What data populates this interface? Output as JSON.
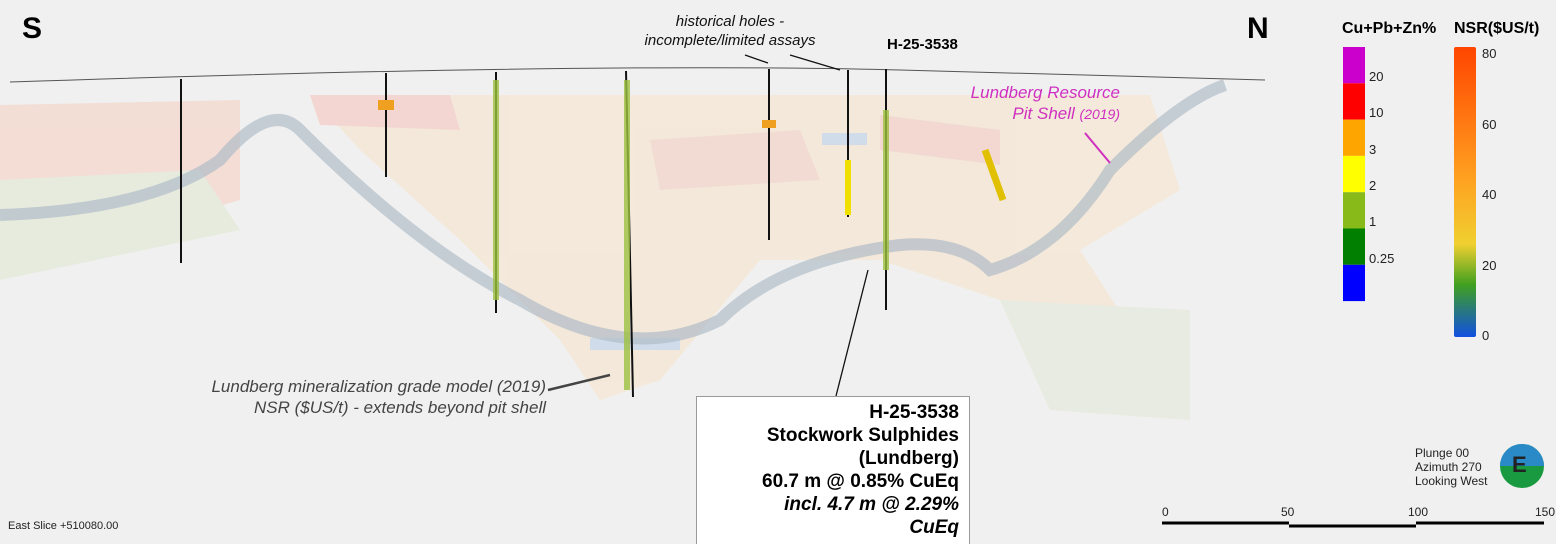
{
  "view": {
    "south_label": "S",
    "north_label": "N",
    "slice": "East Slice +510080.00",
    "plunge": "Plunge 00",
    "azimuth": "Azimuth 270",
    "looking": "Looking West",
    "compass_letter": "E"
  },
  "annotations": {
    "historical_line1": "historical holes -",
    "historical_line2": "incomplete/limited  assays",
    "hole_label": "H-25-3538",
    "pit_line1": "Lundberg Resource",
    "pit_line2": "Pit Shell",
    "pit_year": "(2019)",
    "model_line1": "Lundberg mineralization grade model (2019)",
    "model_line2": "NSR ($US/t) - extends beyond pit shell"
  },
  "callout": {
    "hole": "H-25-3538",
    "line2": "Stockwork Sulphides",
    "line3": "(Lundberg)",
    "line4": "60.7 m @ 0.85% CuEq",
    "line5": "incl. 4.7 m @ 2.29% CuEq"
  },
  "legend_grade": {
    "title": "Cu+Pb+Zn%",
    "labels": [
      "20",
      "10",
      "3",
      "2",
      "1",
      "0.25"
    ],
    "colors": [
      "#cc00cc",
      "#ff0000",
      "#ffa500",
      "#ffff00",
      "#88bb1a",
      "#007f00",
      "#0000ff"
    ]
  },
  "legend_nsr": {
    "title": "NSR($US/t)",
    "labels": [
      "80",
      "60",
      "40",
      "20",
      "0"
    ]
  },
  "scale_bar": {
    "ticks": [
      "0",
      "50",
      "100",
      "150"
    ]
  }
}
